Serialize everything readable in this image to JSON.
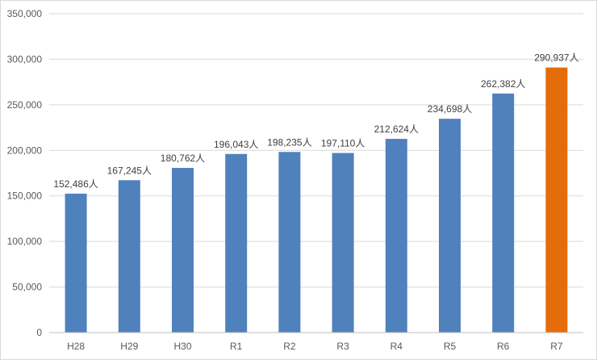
{
  "chart_data": {
    "type": "bar",
    "categories": [
      "H28",
      "H29",
      "H30",
      "R1",
      "R2",
      "R3",
      "R4",
      "R5",
      "R6",
      "R7"
    ],
    "values": [
      152486,
      167245,
      180762,
      196043,
      198235,
      197110,
      212624,
      234698,
      262382,
      290937
    ],
    "data_labels": [
      "152,486人",
      "167,245人",
      "180,762人",
      "196,043人",
      "198,235人",
      "197,110人",
      "212,624人",
      "234,698人",
      "262,382人",
      "290,937人"
    ],
    "y_ticks": [
      0,
      50000,
      100000,
      150000,
      200000,
      250000,
      300000,
      350000
    ],
    "y_tick_labels": [
      "0",
      "50,000",
      "100,000",
      "150,000",
      "200,000",
      "250,000",
      "300,000",
      "350,000"
    ],
    "ylim": [
      0,
      350000
    ],
    "grid": true,
    "legend": "none",
    "title": "",
    "xlabel": "",
    "ylabel": "",
    "colors": {
      "bar": "#4f81bd",
      "highlight_bar": "#e46c0a",
      "gridline": "#d9d9d9",
      "axis": "#bfbfbf"
    },
    "highlight_category": "R7"
  }
}
